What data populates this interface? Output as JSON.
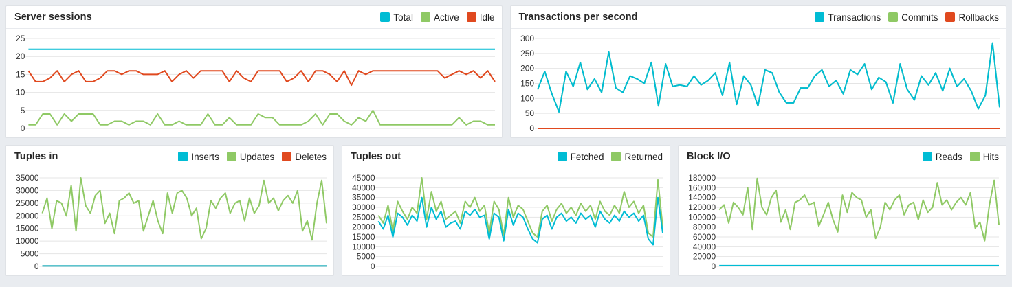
{
  "page": {
    "background_color": "#e9ecf0",
    "panel_background": "#ffffff",
    "grid_color": "#e4e4e4",
    "tick_text_color": "#333333"
  },
  "colors": {
    "cyan": "#00bcd4",
    "green": "#8fc965",
    "red": "#e0491f"
  },
  "chart_data": [
    {
      "id": "server-sessions",
      "type": "line",
      "title": "Server sessions",
      "xlabel": "",
      "ylabel": "",
      "ylim": [
        0,
        25
      ],
      "ticks": [
        0,
        5,
        10,
        15,
        20,
        25
      ],
      "grid": "horizontal",
      "legend_position": "top-right",
      "series": [
        {
          "name": "Total",
          "color": "#00bcd4",
          "values": [
            22,
            22,
            22,
            22,
            22,
            22,
            22,
            22,
            22,
            22,
            22,
            22,
            22,
            22,
            22,
            22,
            22,
            22,
            22,
            22,
            22,
            22,
            22,
            22,
            22,
            22,
            22,
            22,
            22,
            22,
            22,
            22,
            22,
            22,
            22,
            22,
            22,
            22,
            22,
            22,
            22,
            22,
            22,
            22,
            22,
            22,
            22,
            22,
            22,
            22,
            22,
            22,
            22,
            22,
            22,
            22,
            22,
            22,
            22,
            22,
            22,
            22,
            22,
            22,
            22,
            22
          ]
        },
        {
          "name": "Active",
          "color": "#8fc965",
          "values": [
            1,
            1,
            4,
            4,
            1,
            4,
            2,
            4,
            4,
            4,
            1,
            1,
            2,
            2,
            1,
            2,
            2,
            1,
            4,
            1,
            1,
            2,
            1,
            1,
            1,
            4,
            1,
            1,
            3,
            1,
            1,
            1,
            4,
            3,
            3,
            1,
            1,
            1,
            1,
            2,
            4,
            1,
            4,
            4,
            2,
            1,
            3,
            2,
            5,
            1,
            1,
            1,
            1,
            1,
            1,
            1,
            1,
            1,
            1,
            1,
            3,
            1,
            2,
            2,
            1,
            1
          ]
        },
        {
          "name": "Idle",
          "color": "#e0491f",
          "values": [
            16,
            13,
            13,
            14,
            16,
            13,
            15,
            16,
            13,
            13,
            14,
            16,
            16,
            15,
            16,
            16,
            15,
            15,
            15,
            16,
            13,
            15,
            16,
            14,
            16,
            16,
            16,
            16,
            13,
            16,
            14,
            13,
            16,
            16,
            16,
            16,
            13,
            14,
            16,
            13,
            16,
            16,
            15,
            13,
            16,
            12,
            16,
            15,
            16,
            16,
            16,
            16,
            16,
            16,
            16,
            16,
            16,
            16,
            14,
            15,
            16,
            15,
            16,
            14,
            16,
            13
          ]
        }
      ]
    },
    {
      "id": "transactions-per-second",
      "type": "line",
      "title": "Transactions per second",
      "xlabel": "",
      "ylabel": "",
      "ylim": [
        0,
        300
      ],
      "ticks": [
        0,
        50,
        100,
        150,
        200,
        250,
        300
      ],
      "grid": "horizontal",
      "legend_position": "top-right",
      "series": [
        {
          "name": "Transactions",
          "color": "#00bcd4",
          "values": [
            130,
            190,
            115,
            55,
            190,
            140,
            220,
            130,
            165,
            120,
            255,
            135,
            120,
            175,
            165,
            150,
            220,
            75,
            215,
            140,
            145,
            140,
            175,
            145,
            160,
            185,
            110,
            220,
            80,
            175,
            145,
            75,
            195,
            185,
            120,
            85,
            85,
            135,
            135,
            175,
            195,
            140,
            160,
            115,
            195,
            180,
            215,
            130,
            170,
            155,
            85,
            215,
            130,
            95,
            175,
            145,
            185,
            125,
            200,
            140,
            165,
            125,
            65,
            110,
            285,
            70
          ]
        },
        {
          "name": "Commits",
          "color": "#8fc965",
          "values": [
            130,
            190,
            115,
            55,
            190,
            140,
            220,
            130,
            165,
            120,
            255,
            135,
            120,
            175,
            165,
            150,
            220,
            75,
            215,
            140,
            145,
            140,
            175,
            145,
            160,
            185,
            110,
            220,
            80,
            175,
            145,
            75,
            195,
            185,
            120,
            85,
            85,
            135,
            135,
            175,
            195,
            140,
            160,
            115,
            195,
            180,
            215,
            130,
            170,
            155,
            85,
            215,
            130,
            95,
            175,
            145,
            185,
            125,
            200,
            140,
            165,
            125,
            65,
            110,
            285,
            70
          ]
        },
        {
          "name": "Rollbacks",
          "color": "#e0491f",
          "values": [
            0,
            0,
            0,
            0,
            0,
            0,
            0,
            0,
            0,
            0,
            0,
            0,
            0,
            0,
            0,
            0,
            0,
            0,
            0,
            0,
            0,
            0,
            0,
            0,
            0,
            0,
            0,
            0,
            0,
            0,
            0,
            0,
            0,
            0,
            0,
            0,
            0,
            0,
            0,
            0,
            0,
            0,
            0,
            0,
            0,
            0,
            0,
            0,
            0,
            0,
            0,
            0,
            0,
            0,
            0,
            0,
            0,
            0,
            0,
            0,
            0,
            0,
            0,
            0,
            0,
            0
          ]
        }
      ]
    },
    {
      "id": "tuples-in",
      "type": "line",
      "title": "Tuples in",
      "xlabel": "",
      "ylabel": "",
      "ylim": [
        0,
        35000
      ],
      "ticks": [
        0,
        5000,
        10000,
        15000,
        20000,
        25000,
        30000,
        35000
      ],
      "grid": "horizontal",
      "legend_position": "top-right",
      "series": [
        {
          "name": "Inserts",
          "color": "#00bcd4",
          "values": [
            150,
            150,
            150,
            150,
            150,
            150,
            150,
            150,
            150,
            150,
            150,
            150,
            150,
            150,
            150,
            150,
            150,
            150,
            150,
            150,
            150,
            150,
            150,
            150,
            150,
            150,
            150,
            150,
            150,
            150,
            150,
            150,
            150,
            150,
            150,
            150,
            150,
            150,
            150,
            150,
            150,
            150,
            150,
            150,
            150,
            150,
            150,
            150,
            150,
            150,
            150,
            150,
            150,
            150,
            150,
            150,
            150,
            150,
            150,
            150
          ]
        },
        {
          "name": "Updates",
          "color": "#8fc965",
          "values": [
            21000,
            27000,
            15000,
            26000,
            25000,
            20000,
            32000,
            14000,
            35000,
            24000,
            21000,
            28000,
            30000,
            17000,
            21000,
            13000,
            26000,
            27000,
            29000,
            25000,
            26000,
            14000,
            20000,
            26000,
            18000,
            13000,
            29000,
            21000,
            29000,
            30000,
            27000,
            20000,
            23000,
            11000,
            15000,
            26000,
            23000,
            27000,
            29000,
            21000,
            25000,
            26000,
            18000,
            27000,
            21000,
            24000,
            34000,
            25000,
            27000,
            22000,
            26000,
            28000,
            25000,
            30000,
            14000,
            18000,
            10500,
            25000,
            34000,
            17000
          ]
        },
        {
          "name": "Deletes",
          "color": "#e0491f",
          "values": [
            150,
            150,
            150,
            150,
            150,
            150,
            150,
            150,
            150,
            150,
            150,
            150,
            150,
            150,
            150,
            150,
            150,
            150,
            150,
            150,
            150,
            150,
            150,
            150,
            150,
            150,
            150,
            150,
            150,
            150,
            150,
            150,
            150,
            150,
            150,
            150,
            150,
            150,
            150,
            150,
            150,
            150,
            150,
            150,
            150,
            150,
            150,
            150,
            150,
            150,
            150,
            150,
            150,
            150,
            150,
            150,
            150,
            150,
            150,
            150
          ]
        }
      ]
    },
    {
      "id": "tuples-out",
      "type": "line",
      "title": "Tuples out",
      "xlabel": "",
      "ylabel": "",
      "ylim": [
        0,
        45000
      ],
      "ticks": [
        0,
        5000,
        10000,
        15000,
        20000,
        25000,
        30000,
        35000,
        40000,
        45000
      ],
      "grid": "horizontal",
      "legend_position": "top-right",
      "series": [
        {
          "name": "Fetched",
          "color": "#00bcd4",
          "values": [
            23000,
            19000,
            26000,
            15000,
            27000,
            25000,
            21000,
            26000,
            23000,
            35000,
            20000,
            30000,
            24000,
            28000,
            20000,
            22000,
            23000,
            19000,
            28000,
            26000,
            29000,
            25000,
            26000,
            14000,
            27000,
            25000,
            13000,
            29000,
            21000,
            27000,
            25000,
            19000,
            14000,
            12000,
            24000,
            26000,
            19000,
            25000,
            27000,
            23000,
            25000,
            22000,
            27000,
            24000,
            26000,
            20000,
            28000,
            24000,
            22000,
            26000,
            23000,
            28000,
            25000,
            27000,
            23000,
            26000,
            14000,
            11000,
            35000,
            17000
          ]
        },
        {
          "name": "Returned",
          "color": "#8fc965",
          "values": [
            26000,
            22000,
            31000,
            18000,
            33000,
            28000,
            24000,
            30000,
            27000,
            45000,
            24000,
            38000,
            28000,
            33000,
            24000,
            26000,
            28000,
            22000,
            33000,
            30000,
            35000,
            28000,
            31000,
            17000,
            33000,
            29000,
            16000,
            35000,
            25000,
            31000,
            29000,
            23000,
            17000,
            15000,
            28000,
            31000,
            23000,
            29000,
            32000,
            27000,
            30000,
            26000,
            32000,
            28000,
            31000,
            24000,
            33000,
            28000,
            26000,
            31000,
            27000,
            38000,
            30000,
            33000,
            27000,
            31000,
            17000,
            15000,
            44000,
            20000
          ]
        }
      ]
    },
    {
      "id": "block-io",
      "type": "line",
      "title": "Block I/O",
      "xlabel": "",
      "ylabel": "",
      "ylim": [
        0,
        180000
      ],
      "ticks": [
        0,
        20000,
        40000,
        60000,
        80000,
        100000,
        120000,
        140000,
        160000,
        180000
      ],
      "grid": "horizontal",
      "legend_position": "top-right",
      "series": [
        {
          "name": "Reads",
          "color": "#00bcd4",
          "values": [
            1500,
            1500,
            1500,
            1500,
            1500,
            1500,
            1500,
            1500,
            1500,
            1500,
            1500,
            1500,
            1500,
            1500,
            1500,
            1500,
            1500,
            1500,
            1500,
            1500,
            1500,
            1500,
            1500,
            1500,
            1500,
            1500,
            1500,
            1500,
            1500,
            1500,
            1500,
            1500,
            1500,
            1500,
            1500,
            1500,
            1500,
            1500,
            1500,
            1500,
            1500,
            1500,
            1500,
            1500,
            1500,
            1500,
            1500,
            1500,
            1500,
            1500,
            1500,
            1500,
            1500,
            1500,
            1500,
            1500,
            1500,
            1500,
            1500,
            1500
          ]
        },
        {
          "name": "Hits",
          "color": "#8fc965",
          "values": [
            115000,
            125000,
            88000,
            130000,
            120000,
            105000,
            160000,
            75000,
            179000,
            120000,
            105000,
            140000,
            155000,
            90000,
            115000,
            75000,
            130000,
            135000,
            145000,
            125000,
            130000,
            82000,
            105000,
            130000,
            95000,
            70000,
            145000,
            110000,
            150000,
            140000,
            135000,
            100000,
            115000,
            57000,
            80000,
            130000,
            115000,
            135000,
            145000,
            105000,
            125000,
            130000,
            95000,
            135000,
            110000,
            120000,
            170000,
            125000,
            135000,
            115000,
            130000,
            140000,
            125000,
            150000,
            78000,
            90000,
            52000,
            125000,
            175000,
            85000
          ]
        }
      ]
    }
  ]
}
